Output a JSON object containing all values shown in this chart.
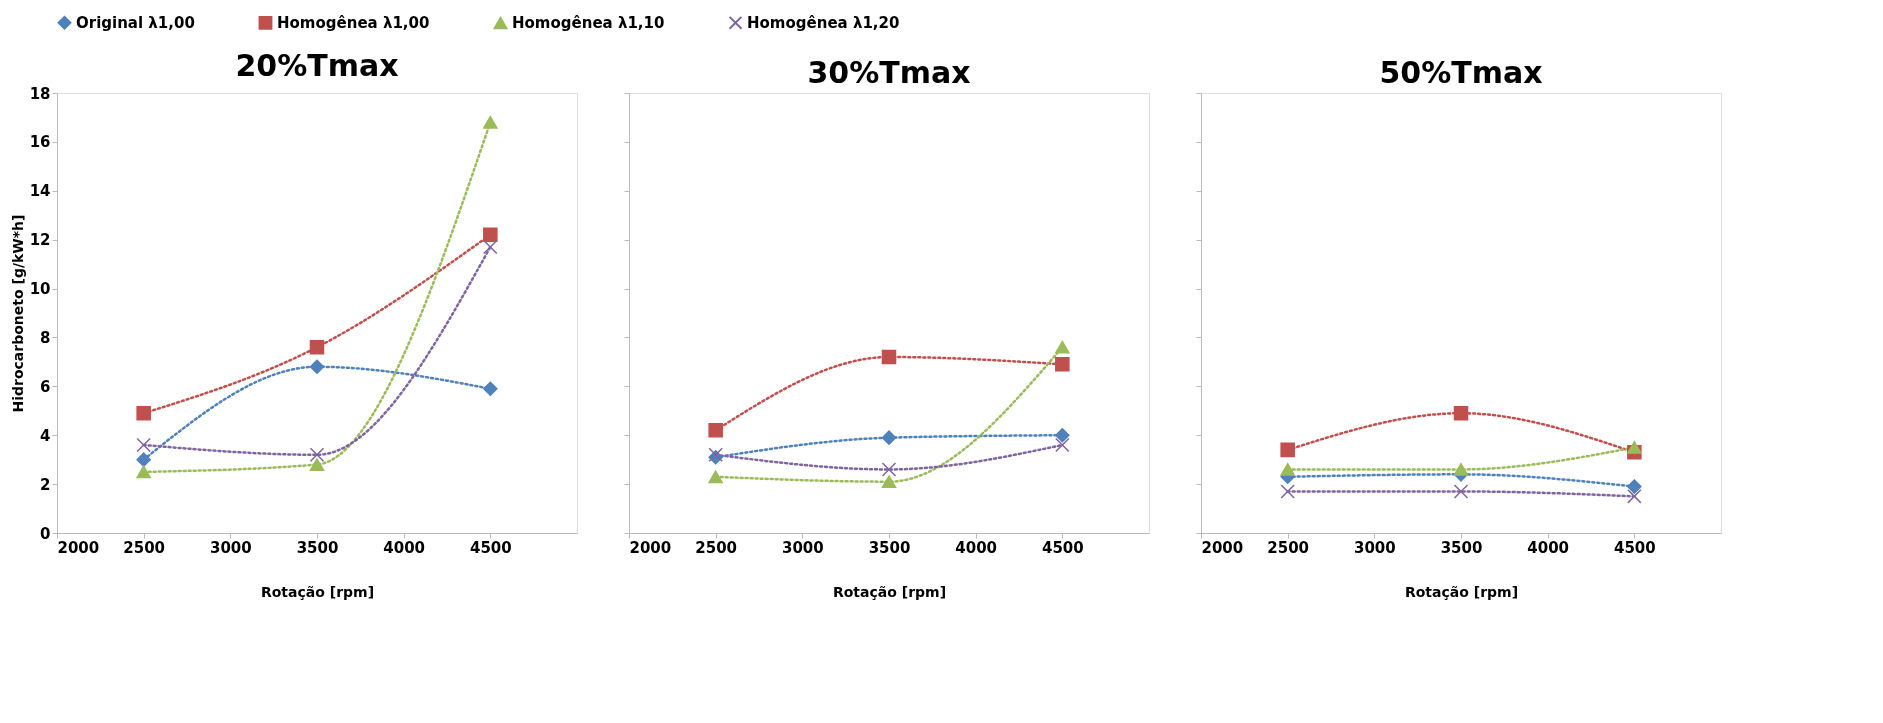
{
  "chart_data": [
    {
      "type": "line",
      "title": "20%Tmax",
      "xlabel": "Rotação [rpm]",
      "ylabel": "Hidrocarboneto [g/kW*h]",
      "x": [
        2500,
        3500,
        4500
      ],
      "xlim": [
        2000,
        5000
      ],
      "xticks": [
        2000,
        2500,
        3000,
        3500,
        4000,
        4500
      ],
      "ylim": [
        0,
        18
      ],
      "yticks": [
        0,
        2,
        4,
        6,
        8,
        10,
        12,
        14,
        16,
        18
      ],
      "grid": false,
      "legend": "top",
      "line_style": "dotted",
      "series": [
        {
          "name": "Original λ1,00",
          "color": "#4f81bd",
          "marker": "diamond",
          "values": [
            3.0,
            6.8,
            5.9
          ]
        },
        {
          "name": "Homogênea λ1,00",
          "color": "#c0504d",
          "marker": "square",
          "values": [
            4.9,
            7.6,
            12.2
          ]
        },
        {
          "name": "Homogênea λ1,10",
          "color": "#9bbb59",
          "marker": "triangle",
          "values": [
            2.5,
            2.8,
            16.8
          ]
        },
        {
          "name": "Homogênea λ1,20",
          "color": "#8064a2",
          "marker": "cross",
          "values": [
            3.6,
            3.2,
            11.7
          ]
        }
      ]
    },
    {
      "type": "line",
      "title": "30%Tmax",
      "xlabel": "Rotação [rpm]",
      "x": [
        2500,
        3500,
        4500
      ],
      "xlim": [
        2000,
        5000
      ],
      "xticks": [
        2000,
        2500,
        3000,
        3500,
        4000,
        4500
      ],
      "ylim": [
        0,
        18
      ],
      "yticks": [
        0,
        2,
        4,
        6,
        8,
        10,
        12,
        14,
        16,
        18
      ],
      "tick_labels": "x",
      "grid": false,
      "legend": "top",
      "line_style": "dotted",
      "series": [
        {
          "name": "Original λ1,00",
          "color": "#4f81bd",
          "marker": "diamond",
          "values": [
            3.1,
            3.9,
            4.0
          ]
        },
        {
          "name": "Homogênea λ1,00",
          "color": "#c0504d",
          "marker": "square",
          "values": [
            4.2,
            7.2,
            6.9
          ]
        },
        {
          "name": "Homogênea λ1,10",
          "color": "#9bbb59",
          "marker": "triangle",
          "values": [
            2.3,
            2.1,
            7.6
          ]
        },
        {
          "name": "Homogênea λ1,20",
          "color": "#8064a2",
          "marker": "cross",
          "values": [
            3.2,
            2.6,
            3.6
          ]
        }
      ]
    },
    {
      "type": "line",
      "title": "50%Tmax",
      "xlabel": "Rotação [rpm]",
      "x": [
        2500,
        3500,
        4500
      ],
      "xlim": [
        2000,
        5000
      ],
      "xticks": [
        2000,
        2500,
        3000,
        3500,
        4000,
        4500
      ],
      "ylim": [
        0,
        18
      ],
      "yticks": [
        0,
        2,
        4,
        6,
        8,
        10,
        12,
        14,
        16,
        18
      ],
      "tick_labels": "x",
      "grid": false,
      "legend": "top",
      "line_style": "dotted",
      "series": [
        {
          "name": "Original λ1,00",
          "color": "#4f81bd",
          "marker": "diamond",
          "values": [
            2.3,
            2.4,
            1.9
          ]
        },
        {
          "name": "Homogênea λ1,00",
          "color": "#c0504d",
          "marker": "square",
          "values": [
            3.4,
            4.9,
            3.3
          ]
        },
        {
          "name": "Homogênea λ1,10",
          "color": "#9bbb59",
          "marker": "triangle",
          "values": [
            2.6,
            2.6,
            3.5
          ]
        },
        {
          "name": "Homogênea λ1,20",
          "color": "#8064a2",
          "marker": "cross",
          "values": [
            1.7,
            1.7,
            1.5
          ]
        }
      ]
    }
  ]
}
